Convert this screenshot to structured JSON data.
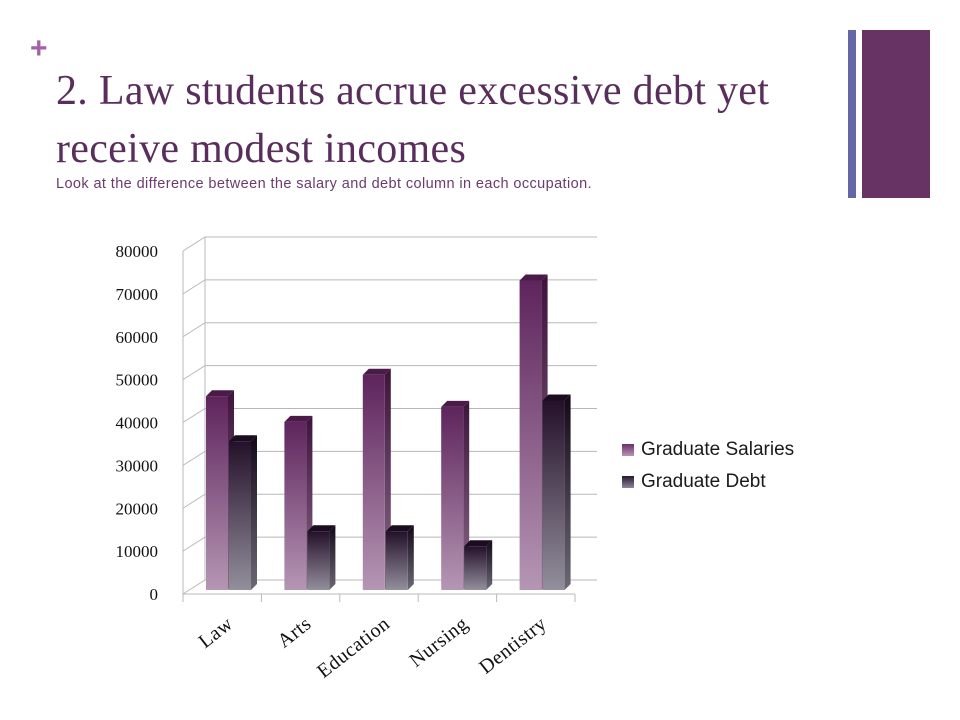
{
  "slide": {
    "plus_glyph": "+",
    "title": "2. Law students accrue excessive debt yet receive modest incomes",
    "subtitle": "Look at the difference between the salary and debt column in each occupation."
  },
  "colors": {
    "accent": "#673264",
    "accent_secondary": "#6466a6",
    "salary_series": "#7a3d7a",
    "debt_series": "#3a2440"
  },
  "chart_data": {
    "type": "bar",
    "categories": [
      "Law",
      "Arts",
      "Education",
      "Nursing",
      "Dentistry"
    ],
    "series": [
      {
        "name": "Graduate Salaries",
        "values": [
          48000,
          42000,
          53000,
          45500,
          75000
        ]
      },
      {
        "name": "Graduate Debt",
        "values": [
          37500,
          16500,
          16500,
          13000,
          47000
        ]
      }
    ],
    "ylim": [
      0,
      80000
    ],
    "yticks": [
      0,
      10000,
      20000,
      30000,
      40000,
      50000,
      60000,
      70000,
      80000
    ],
    "grid": true,
    "legend_position": "right",
    "three_d": true
  }
}
